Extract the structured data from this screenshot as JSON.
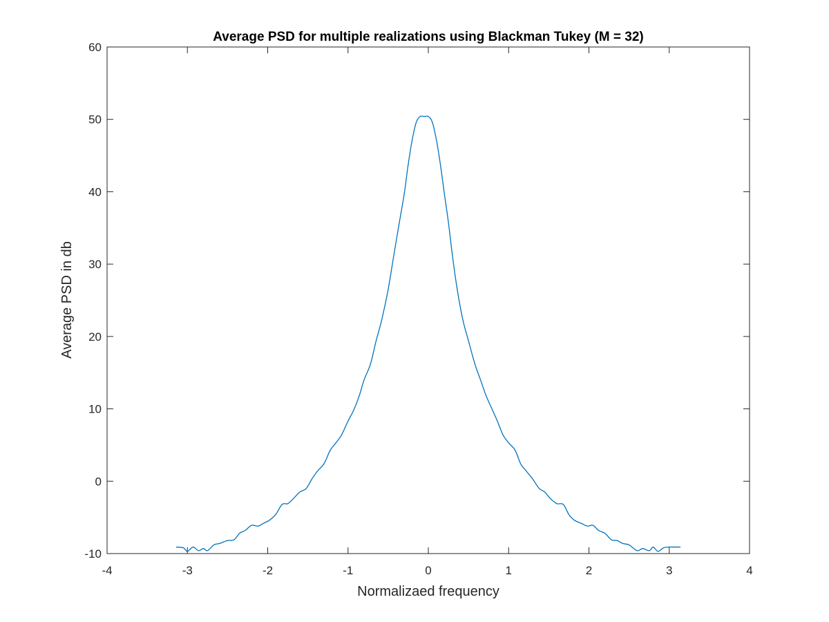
{
  "chart_data": {
    "type": "line",
    "title": "Average PSD for multiple realizations using Blackman Tukey (M = 32)",
    "xlabel": "Normalizaed frequency",
    "ylabel": "Average PSD in db",
    "xlim": [
      -4,
      4
    ],
    "ylim": [
      -10,
      60
    ],
    "xticks": [
      -4,
      -3,
      -2,
      -1,
      0,
      1,
      2,
      3,
      4
    ],
    "yticks": [
      -10,
      0,
      10,
      20,
      30,
      40,
      50,
      60
    ],
    "grid": false,
    "line_color": "#0072BD",
    "series": [
      {
        "x": [
          -3.14,
          -3.05,
          -3.0,
          -2.93,
          -2.86,
          -2.8,
          -2.75,
          -2.67,
          -2.6,
          -2.5,
          -2.42,
          -2.35,
          -2.28,
          -2.2,
          -2.12,
          -2.05,
          -1.98,
          -1.9,
          -1.82,
          -1.75,
          -1.68,
          -1.6,
          -1.52,
          -1.45,
          -1.38,
          -1.3,
          -1.22,
          -1.15,
          -1.08,
          -1.0,
          -0.93,
          -0.86,
          -0.8,
          -0.72,
          -0.65,
          -0.58,
          -0.5,
          -0.43,
          -0.36,
          -0.3,
          -0.25,
          -0.2,
          -0.15,
          -0.1,
          -0.05,
          0.0,
          0.05,
          0.1,
          0.15,
          0.2,
          0.25,
          0.3,
          0.36,
          0.43,
          0.5,
          0.58,
          0.65,
          0.72,
          0.8,
          0.86,
          0.93,
          1.0,
          1.08,
          1.15,
          1.22,
          1.3,
          1.38,
          1.45,
          1.52,
          1.6,
          1.68,
          1.75,
          1.82,
          1.9,
          1.98,
          2.05,
          2.12,
          2.2,
          2.28,
          2.35,
          2.42,
          2.5,
          2.6,
          2.67,
          2.75,
          2.8,
          2.86,
          2.93,
          3.0,
          3.05,
          3.14
        ],
        "values": [
          -9.1,
          -9.2,
          -9.7,
          -9.1,
          -9.6,
          -9.3,
          -9.6,
          -8.8,
          -8.6,
          -8.2,
          -8.1,
          -7.2,
          -6.8,
          -6.1,
          -6.2,
          -5.8,
          -5.4,
          -4.6,
          -3.2,
          -3.1,
          -2.4,
          -1.5,
          -1.0,
          0.3,
          1.4,
          2.4,
          4.3,
          5.3,
          6.4,
          8.3,
          9.8,
          11.8,
          14.0,
          16.2,
          19.4,
          22.3,
          26.5,
          31.2,
          35.8,
          39.7,
          43.8,
          47.2,
          49.6,
          50.4,
          50.4,
          50.4,
          49.6,
          47.2,
          43.8,
          39.7,
          35.8,
          31.2,
          26.5,
          22.3,
          19.4,
          16.2,
          14.0,
          11.8,
          9.8,
          8.3,
          6.4,
          5.3,
          4.3,
          2.4,
          1.4,
          0.3,
          -1.0,
          -1.5,
          -2.4,
          -3.1,
          -3.2,
          -4.6,
          -5.4,
          -5.8,
          -6.2,
          -6.1,
          -6.8,
          -7.2,
          -8.1,
          -8.2,
          -8.6,
          -8.8,
          -9.6,
          -9.3,
          -9.6,
          -9.1,
          -9.7,
          -9.2,
          -9.1,
          -9.1,
          -9.1
        ]
      }
    ]
  }
}
